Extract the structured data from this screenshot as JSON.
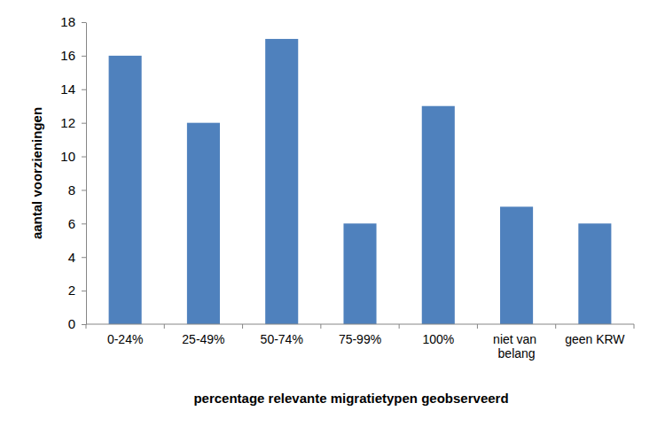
{
  "chart_data": {
    "type": "bar",
    "x_label": "percentage relevante migratietypen geobserveerd",
    "y_label": "aantal voorzieningen",
    "categories": [
      "0-24%",
      "25-49%",
      "50-74%",
      "75-99%",
      "100%",
      "niet van belang",
      "geen KRW"
    ],
    "values": [
      16,
      12,
      17,
      6,
      13,
      7,
      6
    ],
    "color": "#4f81bd",
    "ylim": [
      0,
      18
    ],
    "yticks": [
      0,
      2,
      4,
      6,
      8,
      10,
      12,
      14,
      16,
      18
    ],
    "grid": false
  }
}
